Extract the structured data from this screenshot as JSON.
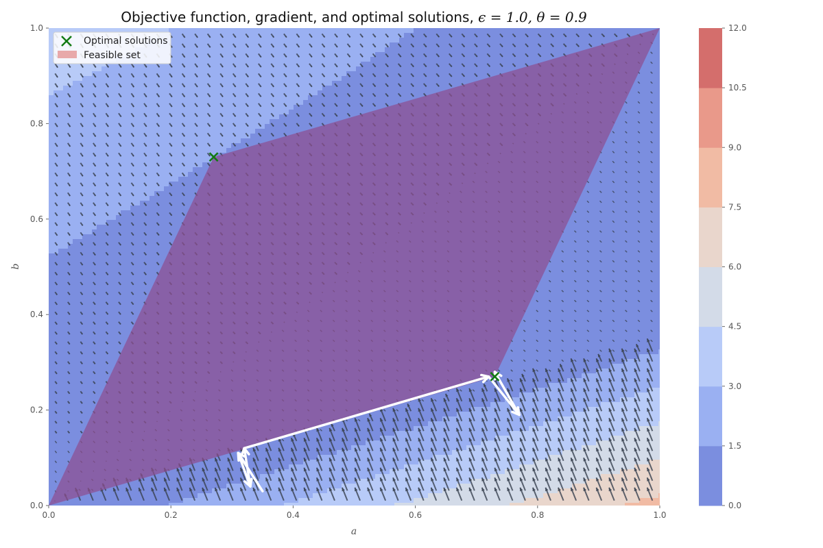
{
  "chart_data": {
    "type": "contour",
    "title": "Objective function, gradient, and optimal solutions, ",
    "title_math": "ϵ = 1.0, θ = 0.9",
    "xlabel": "a",
    "ylabel": "b",
    "xlim": [
      0.0,
      1.0
    ],
    "ylim": [
      0.0,
      1.0
    ],
    "x_ticks": [
      "0.0",
      "0.2",
      "0.4",
      "0.6",
      "0.8",
      "1.0"
    ],
    "y_ticks": [
      "0.0",
      "0.2",
      "0.4",
      "0.6",
      "0.8",
      "1.0"
    ],
    "grid": false,
    "legend": {
      "placement": "upper-left",
      "entries": [
        {
          "label": "Optimal solutions",
          "marker": "x",
          "color": "#127a12"
        },
        {
          "label": "Feasible set",
          "marker": "patch",
          "color": "#e8a9aa"
        }
      ]
    },
    "colorbar": {
      "levels": [
        0.0,
        1.5,
        3.0,
        4.5,
        6.0,
        7.5,
        9.0,
        10.5,
        12.0
      ],
      "tick_labels": [
        "0.0",
        "1.5",
        "3.0",
        "4.5",
        "6.0",
        "7.5",
        "9.0",
        "10.5",
        "12.0"
      ],
      "colors": [
        "#7b8edf",
        "#9ab0f2",
        "#b8cbf8",
        "#d3dbe8",
        "#e9d6cc",
        "#f1bba4",
        "#e9998a",
        "#d46e6c"
      ]
    },
    "feasible_set": {
      "vertices": [
        [
          0.0,
          0.0
        ],
        [
          0.27,
          0.73
        ],
        [
          1.0,
          1.0
        ],
        [
          0.73,
          0.27
        ]
      ],
      "color": "#8e4f92"
    },
    "optimal_solutions": [
      [
        0.27,
        0.73
      ],
      [
        0.73,
        0.27
      ]
    ],
    "trajectory": {
      "color": "#ffffff",
      "points": [
        [
          0.35,
          0.03
        ],
        [
          0.31,
          0.11
        ],
        [
          0.33,
          0.04
        ],
        [
          0.32,
          0.12
        ],
        [
          0.72,
          0.27
        ],
        [
          0.77,
          0.19
        ],
        [
          0.73,
          0.28
        ]
      ]
    },
    "gradient_field": {
      "color": "#3a4250",
      "grid_step": 0.0208
    }
  }
}
